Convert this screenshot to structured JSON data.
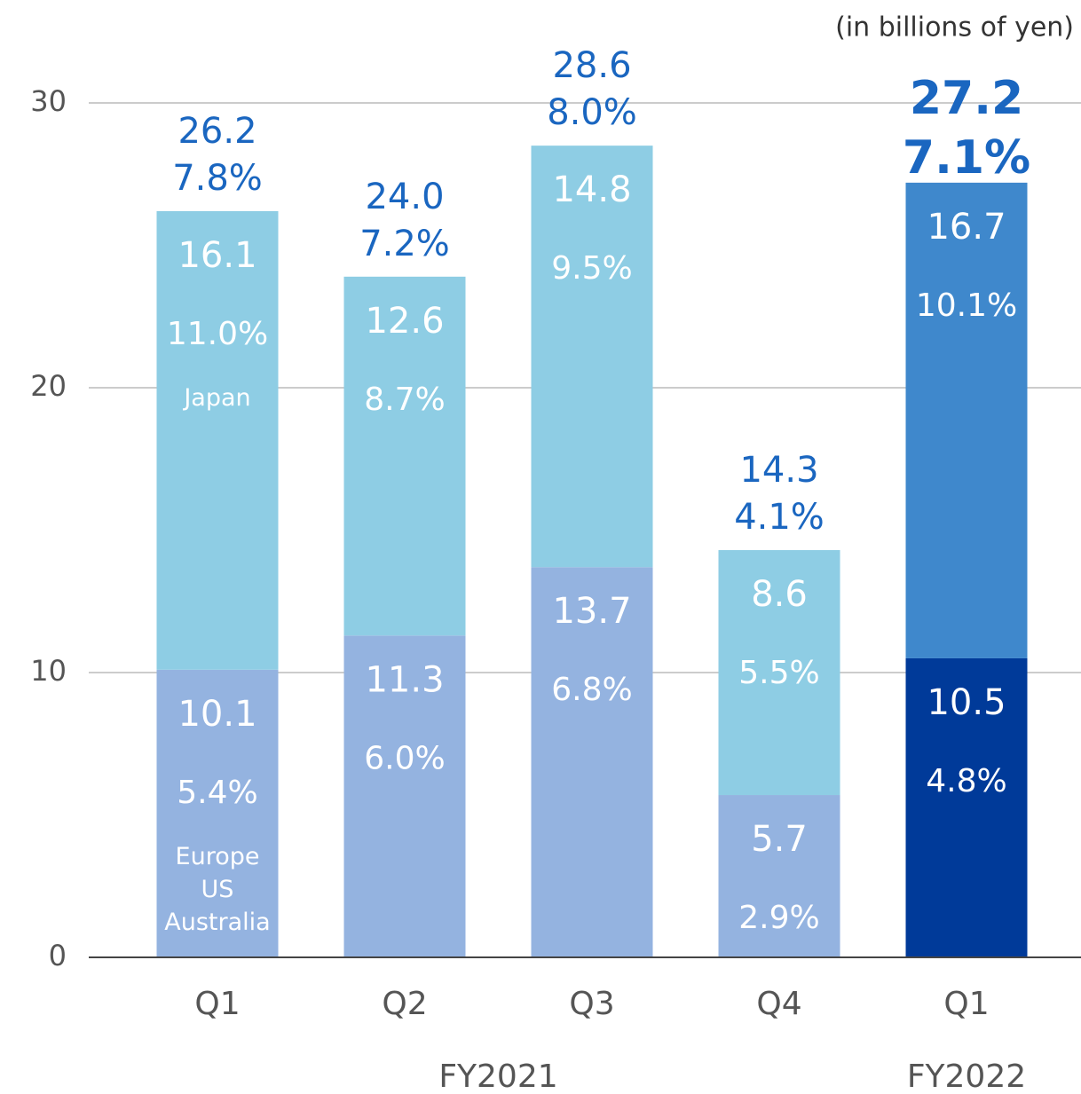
{
  "chart_data": {
    "type": "stacked_bar",
    "unit_note": "(in billions of yen)",
    "categories": [
      "Q1",
      "Q2",
      "Q3",
      "Q4",
      "Q1"
    ],
    "groups": [
      {
        "label": "FY2021",
        "span": 4
      },
      {
        "label": "FY2022",
        "span": 1
      }
    ],
    "series": [
      {
        "name": "Europe US Australia",
        "colors": [
          "#94b3e0",
          "#94b3e0",
          "#94b3e0",
          "#94b3e0",
          "#003a99"
        ],
        "values": [
          10.1,
          11.3,
          13.7,
          5.7,
          10.5
        ],
        "shares": [
          "5.4%",
          "6.0%",
          "6.8%",
          "2.9%",
          "4.8%"
        ]
      },
      {
        "name": "Japan",
        "colors": [
          "#8ecde4",
          "#8ecde4",
          "#8ecde4",
          "#8ecde4",
          "#3f88cc"
        ],
        "values": [
          16.1,
          12.6,
          14.8,
          8.6,
          16.7
        ],
        "shares": [
          "11.0%",
          "8.7%",
          "9.5%",
          "5.5%",
          "10.1%"
        ]
      }
    ],
    "totals": [
      26.2,
      24.0,
      28.6,
      14.3,
      27.2
    ],
    "total_labels": [
      "26.2",
      "24.0",
      "28.6",
      "14.3",
      "27.2"
    ],
    "total_shares": [
      "7.8%",
      "7.2%",
      "8.0%",
      "4.1%",
      "7.1%"
    ],
    "highlight": 4,
    "ylim": [
      0,
      30
    ],
    "yticks": [
      0,
      10,
      20,
      30
    ],
    "grid": true
  }
}
